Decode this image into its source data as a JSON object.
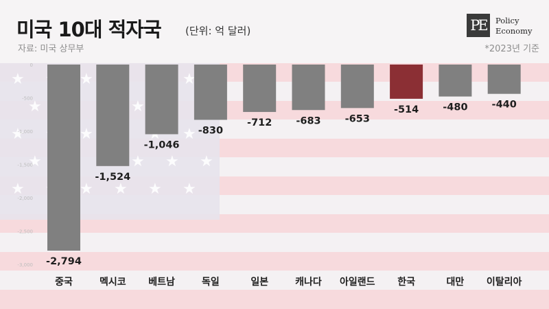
{
  "header": {
    "title": "미국 10대 적자국",
    "subtitle": "(단위: 억 달러)",
    "source": "자료: 미국 상무부",
    "note": "*2023년 기준"
  },
  "logo": {
    "mark": "PE",
    "line1": "Policy",
    "line2": "Economy"
  },
  "colors": {
    "bar": "#808080",
    "highlight": "#8b2f34",
    "flag_stripe": "#f6d6d8",
    "flag_canton": "#e6e2ec"
  },
  "chart_data": {
    "type": "bar",
    "categories": [
      "중국",
      "멕시코",
      "베트남",
      "독일",
      "일본",
      "캐나다",
      "아일랜드",
      "한국",
      "대만",
      "이탈리아"
    ],
    "values": [
      -2794,
      -1524,
      -1046,
      -830,
      -712,
      -683,
      -653,
      -514,
      -480,
      -440
    ],
    "value_labels": [
      "-2,794",
      "-1,524",
      "-1,046",
      "-830",
      "-712",
      "-683",
      "-653",
      "-514",
      "-480",
      "-440"
    ],
    "highlight_category": "한국",
    "y_ticks": [
      0,
      -500,
      -1000,
      -1500,
      -2000,
      -2500,
      -3000
    ],
    "y_tick_labels": [
      "0",
      "-500",
      "-1,000",
      "-1,500",
      "-2,000",
      "-2,500",
      "-3,000"
    ],
    "ylim": [
      -3000,
      0
    ],
    "title": "미국 10대 적자국",
    "ylabel": "",
    "xlabel": ""
  }
}
